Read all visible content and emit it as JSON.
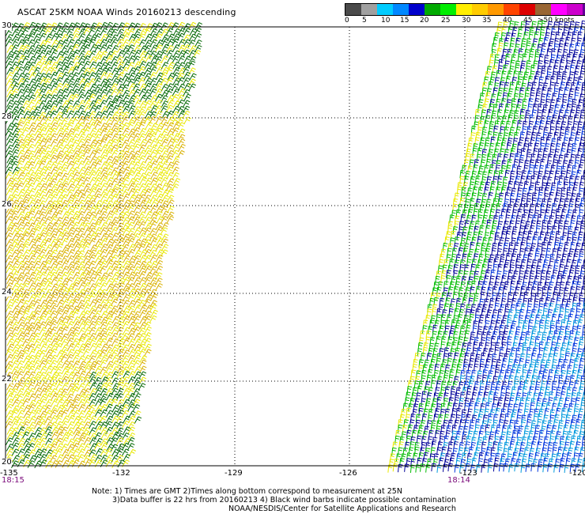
{
  "title": "ASCAT 25KM NOAA Winds 20160213 descending",
  "legend": {
    "colors": [
      "#4a4a4a",
      "#a0a0a0",
      "#00ccff",
      "#0088ff",
      "#0000cc",
      "#00aa00",
      "#00ee00",
      "#ffee00",
      "#ffcc00",
      "#ff9900",
      "#ff4400",
      "#dd0000",
      "#996633",
      "#ff00ff",
      "#cc00cc",
      "#660099"
    ],
    "labels": [
      "0",
      "5",
      "10",
      "15",
      "20",
      "25",
      "30",
      "35",
      "40",
      "45",
      ">50 knots"
    ]
  },
  "axes": {
    "lat_labels": [
      "30",
      "28",
      "26",
      "24",
      "22",
      "20"
    ],
    "lon_labels": [
      "-135",
      "-132",
      "-129",
      "-126",
      "-123",
      "-120"
    ],
    "time_labels": [
      "18:15",
      "18:14"
    ]
  },
  "notes": {
    "line1": "Note: 1) Times are GMT 2)Times along bottom correspond to measurement at 25N",
    "line2": "3)Data buffer is 22 hrs from 20160213 4) Black wind barbs indicate possible contamination",
    "line3": "NOAA/NESDIS/Center for Satellite Applications and Research"
  },
  "barb_colors": {
    "yellow": "#e8e800",
    "gold": "#d8b000",
    "dark_green": "#006600",
    "green": "#00bb00",
    "dark_blue": "#000099",
    "blue": "#0033dd",
    "cyan": "#0099dd"
  }
}
